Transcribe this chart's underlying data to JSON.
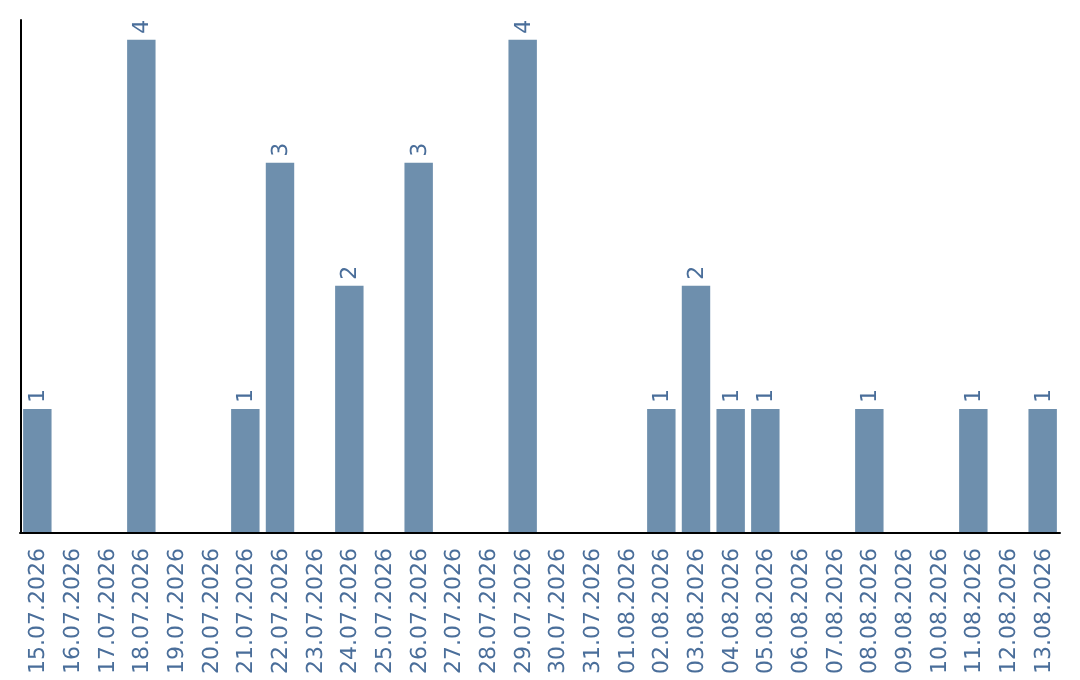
{
  "chart_data": {
    "type": "bar",
    "categories": [
      "15.07.2026",
      "16.07.2026",
      "17.07.2026",
      "18.07.2026",
      "19.07.2026",
      "20.07.2026",
      "21.07.2026",
      "22.07.2026",
      "23.07.2026",
      "24.07.2026",
      "25.07.2026",
      "26.07.2026",
      "27.07.2026",
      "28.07.2026",
      "29.07.2026",
      "30.07.2026",
      "31.07.2026",
      "01.08.2026",
      "02.08.2026",
      "03.08.2026",
      "04.08.2026",
      "05.08.2026",
      "06.08.2026",
      "07.08.2026",
      "08.08.2026",
      "09.08.2026",
      "10.08.2026",
      "11.08.2026",
      "12.08.2026",
      "13.08.2026"
    ],
    "values": [
      1,
      0,
      0,
      4,
      0,
      0,
      1,
      3,
      0,
      2,
      0,
      3,
      0,
      0,
      4,
      0,
      0,
      0,
      1,
      2,
      1,
      1,
      0,
      0,
      1,
      0,
      0,
      1,
      0,
      1
    ],
    "value_labels": [
      "1",
      null,
      null,
      "4",
      null,
      null,
      "1",
      "3",
      null,
      "2",
      null,
      "3",
      null,
      null,
      "4",
      null,
      null,
      null,
      "1",
      "2",
      "1",
      "1",
      null,
      null,
      "1",
      null,
      null,
      "1",
      null,
      "1"
    ],
    "color": "#6e8fad",
    "tick_labels": "x"
  }
}
